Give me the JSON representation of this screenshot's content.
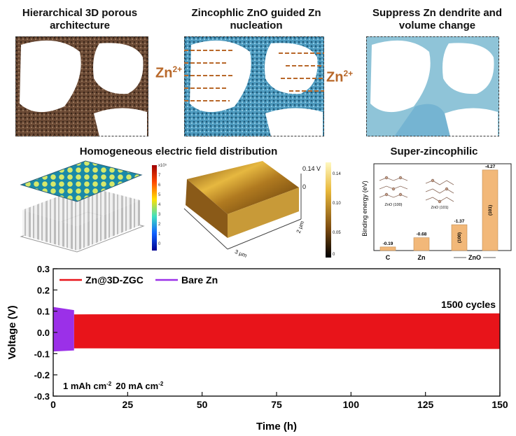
{
  "titles": {
    "t1": "Hierarchical 3D porous architecture",
    "t2": "Zincophlic ZnO guided Zn nucleation",
    "t3": "Suppress Zn dendrite and volume change",
    "t4": "Homogeneous electric field distribution",
    "t5": "Super-zincophilic"
  },
  "arrows": {
    "zn_left": "Zn",
    "zn_right": "Zn",
    "charge": "2+"
  },
  "afm": {
    "top_label": "0.14 V",
    "zero_label": "0",
    "y_axis": "2 μm",
    "x_axis": "3 μm",
    "scale_ticks": [
      "0.14",
      "0.10",
      "0.05",
      "0"
    ]
  },
  "colorbar_ticks": [
    "x10⁵",
    "7",
    "6",
    "5",
    "4",
    "3",
    "2",
    "1",
    "0"
  ],
  "chart_data": [
    {
      "type": "bar",
      "ylabel": "Binding energy (eV)",
      "categories": [
        "C",
        "Zn",
        "ZnO (100)",
        "ZnO (101)"
      ],
      "values": [
        -0.19,
        -0.68,
        -1.37,
        -4.27
      ],
      "value_labels": [
        "-0.19",
        "-0.68",
        "-1.37",
        "-4.27"
      ],
      "bar_tags": [
        "(100)",
        "(101)"
      ],
      "x_labels": [
        "C",
        "Zn",
        "ZnO"
      ],
      "insets": [
        "ZnO (100)",
        "ZnO (101)"
      ],
      "color": "#f2b879"
    },
    {
      "type": "area",
      "xlabel": "Time (h)",
      "ylabel": "Voltage (V)",
      "xlim": [
        0,
        150
      ],
      "ylim": [
        -0.3,
        0.3
      ],
      "xticks": [
        0,
        25,
        50,
        75,
        100,
        125,
        150
      ],
      "yticks": [
        0.3,
        0.2,
        0.1,
        0.0,
        -0.1,
        -0.2,
        -0.3
      ],
      "ytick_labels": [
        "0.3",
        "0.2",
        "0.1",
        "0.0",
        "-0.1",
        "-0.2",
        "-0.3"
      ],
      "series": [
        {
          "name": "Zn@3D-ZGC",
          "color": "#e8141a",
          "x": [
            7,
            150
          ],
          "upper": [
            0.085,
            0.09
          ],
          "lower": [
            -0.075,
            -0.078
          ]
        },
        {
          "name": "Bare Zn",
          "color": "#9b30e8",
          "x": [
            0,
            7
          ],
          "upper": [
            0.12,
            0.105
          ],
          "lower": [
            -0.09,
            -0.085
          ]
        }
      ],
      "annotation_cycles": "1500 cycles",
      "annotation_current": "1 mAh cm",
      "annotation_current_sup": "-2",
      "annotation_density": "20 mA cm",
      "annotation_density_sup": "-2",
      "legend_position": "top-left"
    }
  ]
}
